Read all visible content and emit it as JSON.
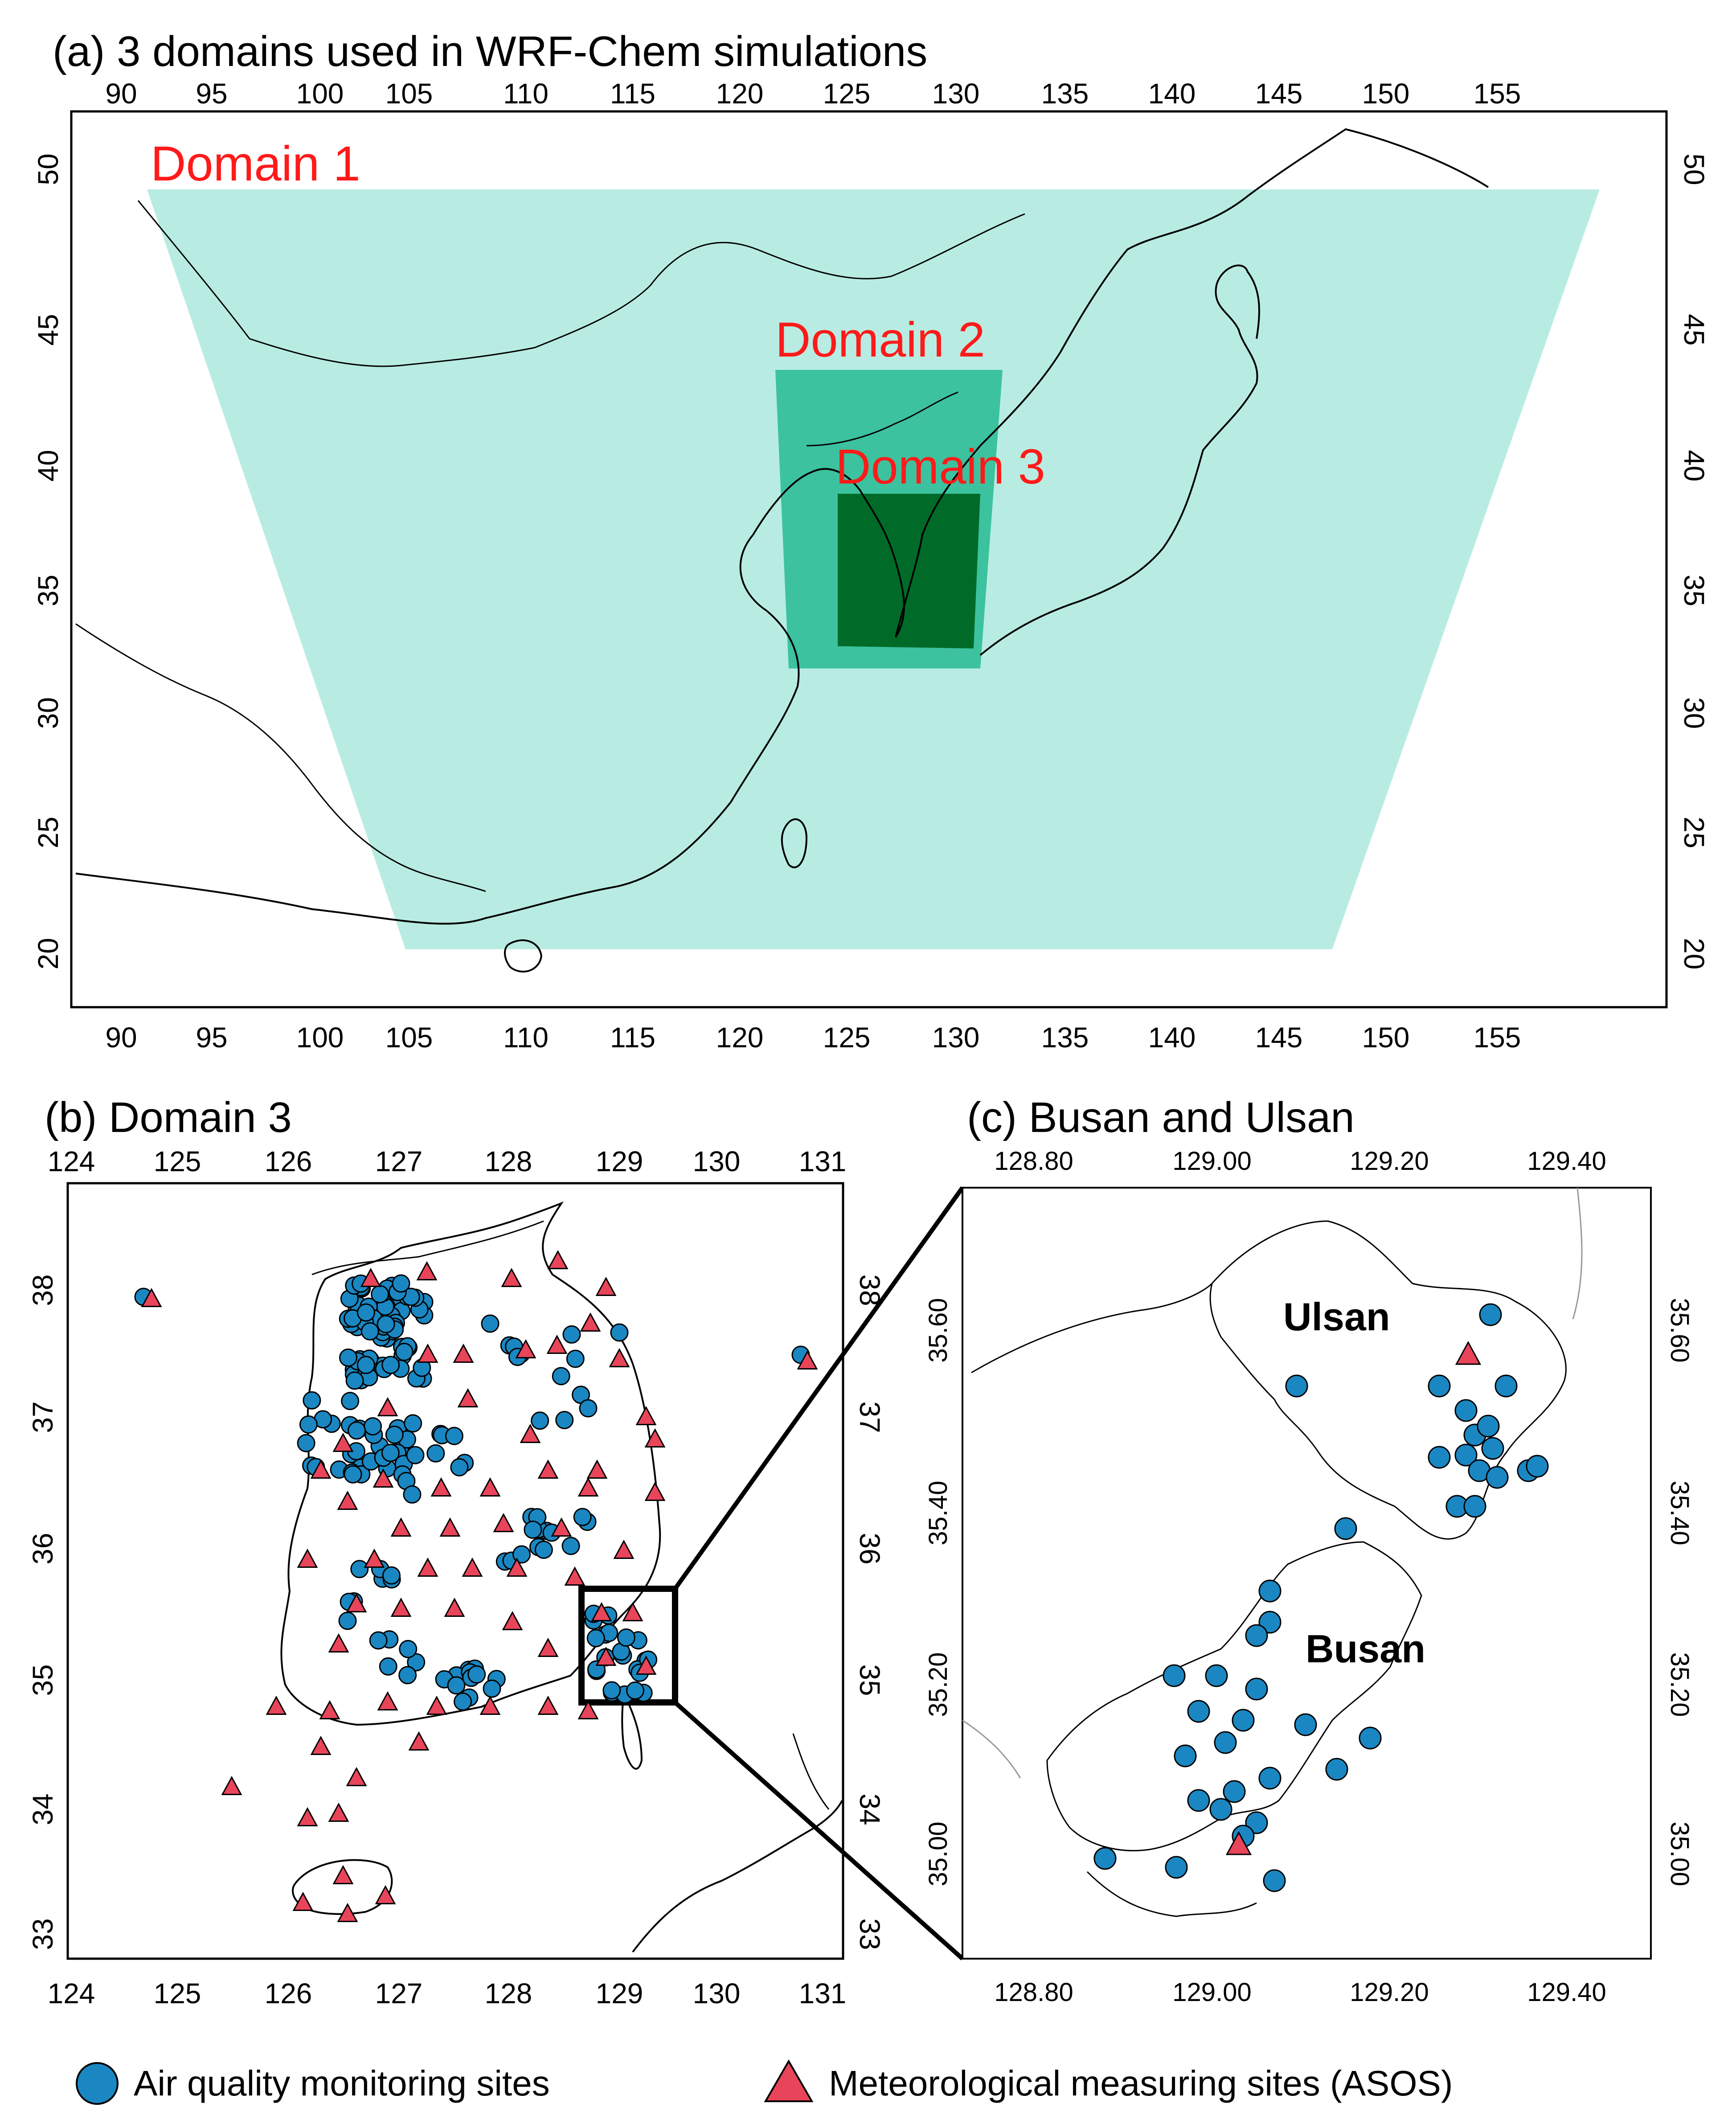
{
  "panel_a": {
    "title": "(a) 3 domains used in WRF-Chem simulations",
    "lon_ticks": [
      "90",
      "95",
      "100",
      "105",
      "110",
      "115",
      "120",
      "125",
      "130",
      "135",
      "140",
      "145",
      "150",
      "155"
    ],
    "lat_ticks": [
      "20",
      "25",
      "30",
      "35",
      "40",
      "45",
      "50"
    ],
    "domain_labels": [
      "Domain 1",
      "Domain 2",
      "Domain 3"
    ],
    "colors": {
      "domain1": "#b8ece2",
      "domain2": "#3cc29e",
      "domain3": "#006b28",
      "label": "#ff1a1a"
    }
  },
  "panel_b": {
    "title": "(b) Domain 3",
    "lon_ticks": [
      "124",
      "125",
      "126",
      "127",
      "128",
      "129",
      "130",
      "131"
    ],
    "lat_ticks": [
      "33",
      "34",
      "35",
      "36",
      "37",
      "38"
    ]
  },
  "panel_c": {
    "title": "(c) Busan and Ulsan",
    "lon_ticks": [
      "128.80",
      "129.00",
      "129.20",
      "129.40"
    ],
    "lat_ticks": [
      "35.00",
      "35.20",
      "35.40",
      "35.60"
    ],
    "cities": [
      "Ulsan",
      "Busan"
    ]
  },
  "legend": {
    "air_quality": "Air quality monitoring sites",
    "met": "Meteorological measuring sites (ASOS)",
    "colors": {
      "air_quality": "#1a87c2",
      "met": "#e8455a"
    }
  }
}
